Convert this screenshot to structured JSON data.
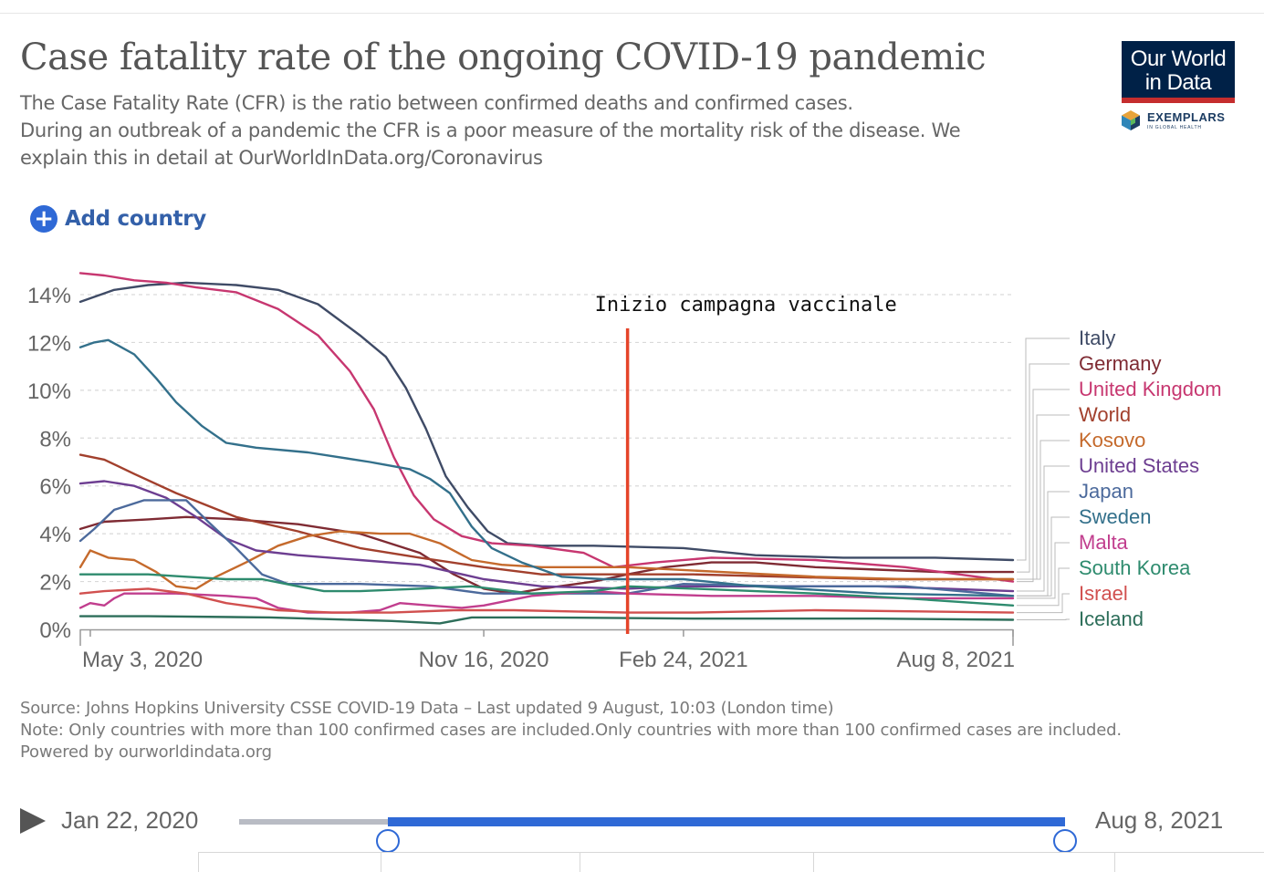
{
  "header": {
    "title": "Case fatality rate of the ongoing COVID-19 pandemic",
    "subtitle_lines": [
      "The Case Fatality Rate (CFR) is the ratio between confirmed deaths and confirmed cases.",
      "During an outbreak of a pandemic the CFR is a poor measure of the mortality risk of the disease. We",
      "explain this in detail at OurWorldInData.org/Coronavirus"
    ]
  },
  "logo": {
    "line1": "Our World",
    "line2": "in Data",
    "exemplars": "EXEMPLARS",
    "exemplars_sub": "IN GLOBAL HEALTH"
  },
  "controls": {
    "add_country": "Add country"
  },
  "chart_data": {
    "type": "line",
    "y_unit": "%",
    "ylim": [
      0,
      14
    ],
    "y_ticks": [
      "0%",
      "2%",
      "4%",
      "6%",
      "8%",
      "10%",
      "12%",
      "14%"
    ],
    "x_range": [
      "2020-04-28",
      "2021-08-08"
    ],
    "x_ticks": [
      {
        "date": "2020-05-03",
        "label": "May 3, 2020"
      },
      {
        "date": "2020-11-16",
        "label": "Nov 16, 2020"
      },
      {
        "date": "2021-02-24",
        "label": "Feb 24, 2021"
      },
      {
        "date": "2021-08-08",
        "label": "Aug 8, 2021"
      }
    ],
    "grid": "horizontal dashed",
    "legend": "right",
    "annotation": {
      "text": "Inizio campagna vaccinale",
      "date": "2021-01-27",
      "color": "#e5442a"
    },
    "series": [
      {
        "name": "Italy",
        "color": "#3f4b66",
        "points": [
          [
            "2020-04-28",
            13.7
          ],
          [
            "2020-05-15",
            14.2
          ],
          [
            "2020-06-01",
            14.4
          ],
          [
            "2020-06-20",
            14.5
          ],
          [
            "2020-07-15",
            14.4
          ],
          [
            "2020-08-05",
            14.2
          ],
          [
            "2020-08-25",
            13.6
          ],
          [
            "2020-09-15",
            12.3
          ],
          [
            "2020-09-28",
            11.4
          ],
          [
            "2020-10-08",
            10.1
          ],
          [
            "2020-10-18",
            8.4
          ],
          [
            "2020-10-28",
            6.4
          ],
          [
            "2020-11-08",
            5.1
          ],
          [
            "2020-11-18",
            4.1
          ],
          [
            "2020-11-28",
            3.6
          ],
          [
            "2020-12-15",
            3.5
          ],
          [
            "2021-01-10",
            3.5
          ],
          [
            "2021-02-24",
            3.4
          ],
          [
            "2021-04-01",
            3.1
          ],
          [
            "2021-05-15",
            3.0
          ],
          [
            "2021-06-30",
            3.0
          ],
          [
            "2021-08-08",
            2.9
          ]
        ]
      },
      {
        "name": "Germany",
        "color": "#7f2b33",
        "points": [
          [
            "2020-04-28",
            4.2
          ],
          [
            "2020-05-10",
            4.5
          ],
          [
            "2020-06-01",
            4.6
          ],
          [
            "2020-06-20",
            4.7
          ],
          [
            "2020-07-15",
            4.6
          ],
          [
            "2020-08-15",
            4.4
          ],
          [
            "2020-09-15",
            4.0
          ],
          [
            "2020-10-15",
            3.2
          ],
          [
            "2020-11-01",
            2.3
          ],
          [
            "2020-11-16",
            1.7
          ],
          [
            "2020-12-01",
            1.5
          ],
          [
            "2020-12-15",
            1.7
          ],
          [
            "2021-01-10",
            2.0
          ],
          [
            "2021-01-27",
            2.3
          ],
          [
            "2021-02-15",
            2.6
          ],
          [
            "2021-03-10",
            2.8
          ],
          [
            "2021-04-01",
            2.8
          ],
          [
            "2021-05-01",
            2.6
          ],
          [
            "2021-06-01",
            2.5
          ],
          [
            "2021-07-01",
            2.4
          ],
          [
            "2021-08-08",
            2.4
          ]
        ]
      },
      {
        "name": "United Kingdom",
        "color": "#c73770",
        "points": [
          [
            "2020-04-28",
            14.9
          ],
          [
            "2020-05-10",
            14.8
          ],
          [
            "2020-05-25",
            14.6
          ],
          [
            "2020-06-10",
            14.5
          ],
          [
            "2020-06-25",
            14.3
          ],
          [
            "2020-07-15",
            14.1
          ],
          [
            "2020-08-05",
            13.4
          ],
          [
            "2020-08-25",
            12.3
          ],
          [
            "2020-09-10",
            10.8
          ],
          [
            "2020-09-22",
            9.2
          ],
          [
            "2020-10-02",
            7.2
          ],
          [
            "2020-10-12",
            5.6
          ],
          [
            "2020-10-22",
            4.6
          ],
          [
            "2020-11-05",
            3.9
          ],
          [
            "2020-11-20",
            3.6
          ],
          [
            "2020-12-10",
            3.5
          ],
          [
            "2021-01-05",
            3.2
          ],
          [
            "2021-01-20",
            2.6
          ],
          [
            "2021-02-10",
            2.8
          ],
          [
            "2021-03-10",
            3.0
          ],
          [
            "2021-05-01",
            2.9
          ],
          [
            "2021-06-15",
            2.6
          ],
          [
            "2021-08-08",
            2.0
          ]
        ]
      },
      {
        "name": "World",
        "color": "#a2402d",
        "points": [
          [
            "2020-04-28",
            7.3
          ],
          [
            "2020-05-10",
            7.1
          ],
          [
            "2020-05-25",
            6.5
          ],
          [
            "2020-06-15",
            5.7
          ],
          [
            "2020-07-15",
            4.7
          ],
          [
            "2020-08-15",
            4.1
          ],
          [
            "2020-09-15",
            3.4
          ],
          [
            "2020-10-15",
            3.0
          ],
          [
            "2020-11-16",
            2.6
          ],
          [
            "2020-12-15",
            2.3
          ],
          [
            "2021-01-27",
            2.3
          ],
          [
            "2021-03-01",
            2.3
          ],
          [
            "2021-04-15",
            2.2
          ],
          [
            "2021-06-01",
            2.1
          ],
          [
            "2021-08-08",
            2.1
          ]
        ]
      },
      {
        "name": "Kosovo",
        "color": "#c56a2c",
        "points": [
          [
            "2020-04-28",
            2.6
          ],
          [
            "2020-05-03",
            3.3
          ],
          [
            "2020-05-12",
            3.0
          ],
          [
            "2020-05-25",
            2.9
          ],
          [
            "2020-06-05",
            2.4
          ],
          [
            "2020-06-15",
            1.8
          ],
          [
            "2020-06-25",
            1.7
          ],
          [
            "2020-07-05",
            2.2
          ],
          [
            "2020-07-20",
            2.8
          ],
          [
            "2020-08-05",
            3.5
          ],
          [
            "2020-08-20",
            3.9
          ],
          [
            "2020-09-05",
            4.1
          ],
          [
            "2020-09-25",
            4.0
          ],
          [
            "2020-10-10",
            4.0
          ],
          [
            "2020-10-25",
            3.6
          ],
          [
            "2020-11-10",
            2.9
          ],
          [
            "2020-11-25",
            2.7
          ],
          [
            "2020-12-15",
            2.6
          ],
          [
            "2021-01-27",
            2.6
          ],
          [
            "2021-03-15",
            2.4
          ],
          [
            "2021-05-01",
            2.2
          ],
          [
            "2021-06-15",
            2.1
          ],
          [
            "2021-08-08",
            2.1
          ]
        ]
      },
      {
        "name": "United States",
        "color": "#6d3e91",
        "points": [
          [
            "2020-04-28",
            6.1
          ],
          [
            "2020-05-10",
            6.2
          ],
          [
            "2020-05-25",
            6.0
          ],
          [
            "2020-06-10",
            5.5
          ],
          [
            "2020-06-25",
            4.7
          ],
          [
            "2020-07-10",
            3.8
          ],
          [
            "2020-07-25",
            3.3
          ],
          [
            "2020-08-15",
            3.1
          ],
          [
            "2020-09-15",
            2.9
          ],
          [
            "2020-10-15",
            2.7
          ],
          [
            "2020-11-16",
            2.1
          ],
          [
            "2020-12-15",
            1.8
          ],
          [
            "2021-01-27",
            1.7
          ],
          [
            "2021-02-24",
            1.8
          ],
          [
            "2021-04-01",
            1.8
          ],
          [
            "2021-06-01",
            1.8
          ],
          [
            "2021-08-08",
            1.6
          ]
        ]
      },
      {
        "name": "Japan",
        "color": "#4c6a9c",
        "points": [
          [
            "2020-04-28",
            3.7
          ],
          [
            "2020-05-05",
            4.2
          ],
          [
            "2020-05-15",
            5.0
          ],
          [
            "2020-05-30",
            5.4
          ],
          [
            "2020-06-20",
            5.4
          ],
          [
            "2020-07-01",
            4.5
          ],
          [
            "2020-07-15",
            3.4
          ],
          [
            "2020-07-28",
            2.3
          ],
          [
            "2020-08-10",
            1.9
          ],
          [
            "2020-09-15",
            1.9
          ],
          [
            "2020-10-20",
            1.8
          ],
          [
            "2020-11-16",
            1.5
          ],
          [
            "2020-12-10",
            1.5
          ],
          [
            "2021-01-27",
            1.5
          ],
          [
            "2021-02-24",
            1.9
          ],
          [
            "2021-04-15",
            1.8
          ],
          [
            "2021-06-15",
            1.8
          ],
          [
            "2021-08-08",
            1.4
          ]
        ]
      },
      {
        "name": "Sweden",
        "color": "#33708b",
        "points": [
          [
            "2020-04-28",
            11.8
          ],
          [
            "2020-05-05",
            12.0
          ],
          [
            "2020-05-12",
            12.1
          ],
          [
            "2020-05-25",
            11.5
          ],
          [
            "2020-06-05",
            10.5
          ],
          [
            "2020-06-15",
            9.5
          ],
          [
            "2020-06-28",
            8.5
          ],
          [
            "2020-07-10",
            7.8
          ],
          [
            "2020-07-25",
            7.6
          ],
          [
            "2020-08-20",
            7.4
          ],
          [
            "2020-09-20",
            7.0
          ],
          [
            "2020-10-10",
            6.7
          ],
          [
            "2020-10-20",
            6.3
          ],
          [
            "2020-10-30",
            5.7
          ],
          [
            "2020-11-10",
            4.3
          ],
          [
            "2020-11-20",
            3.4
          ],
          [
            "2020-12-05",
            2.8
          ],
          [
            "2020-12-25",
            2.2
          ],
          [
            "2021-01-15",
            2.1
          ],
          [
            "2021-01-27",
            2.1
          ],
          [
            "2021-02-24",
            2.1
          ],
          [
            "2021-04-01",
            1.8
          ],
          [
            "2021-06-01",
            1.5
          ],
          [
            "2021-08-08",
            1.4
          ]
        ]
      },
      {
        "name": "Malta",
        "color": "#c13e8e",
        "points": [
          [
            "2020-04-28",
            0.9
          ],
          [
            "2020-05-03",
            1.1
          ],
          [
            "2020-05-10",
            1.0
          ],
          [
            "2020-05-15",
            1.3
          ],
          [
            "2020-05-20",
            1.5
          ],
          [
            "2020-06-15",
            1.5
          ],
          [
            "2020-07-10",
            1.4
          ],
          [
            "2020-07-25",
            1.3
          ],
          [
            "2020-08-05",
            0.9
          ],
          [
            "2020-08-20",
            0.7
          ],
          [
            "2020-09-10",
            0.7
          ],
          [
            "2020-09-25",
            0.8
          ],
          [
            "2020-10-05",
            1.1
          ],
          [
            "2020-10-20",
            1.0
          ],
          [
            "2020-11-05",
            0.9
          ],
          [
            "2020-11-16",
            1.0
          ],
          [
            "2020-12-10",
            1.4
          ],
          [
            "2021-01-10",
            1.6
          ],
          [
            "2021-01-27",
            1.5
          ],
          [
            "2021-03-10",
            1.4
          ],
          [
            "2021-05-01",
            1.4
          ],
          [
            "2021-06-15",
            1.3
          ],
          [
            "2021-08-08",
            1.3
          ]
        ]
      },
      {
        "name": "South Korea",
        "color": "#2e8b6e",
        "points": [
          [
            "2020-04-28",
            2.3
          ],
          [
            "2020-06-01",
            2.3
          ],
          [
            "2020-06-20",
            2.2
          ],
          [
            "2020-07-10",
            2.1
          ],
          [
            "2020-07-28",
            2.1
          ],
          [
            "2020-08-15",
            1.8
          ],
          [
            "2020-08-28",
            1.6
          ],
          [
            "2020-09-15",
            1.6
          ],
          [
            "2020-10-15",
            1.7
          ],
          [
            "2020-11-10",
            1.8
          ],
          [
            "2020-12-10",
            1.5
          ],
          [
            "2021-01-10",
            1.6
          ],
          [
            "2021-01-27",
            1.8
          ],
          [
            "2021-03-01",
            1.7
          ],
          [
            "2021-05-01",
            1.5
          ],
          [
            "2021-06-15",
            1.3
          ],
          [
            "2021-08-08",
            1.0
          ]
        ]
      },
      {
        "name": "Israel",
        "color": "#d1504f",
        "points": [
          [
            "2020-04-28",
            1.5
          ],
          [
            "2020-05-10",
            1.6
          ],
          [
            "2020-06-01",
            1.7
          ],
          [
            "2020-06-20",
            1.5
          ],
          [
            "2020-07-10",
            1.1
          ],
          [
            "2020-08-05",
            0.8
          ],
          [
            "2020-09-01",
            0.7
          ],
          [
            "2020-10-01",
            0.7
          ],
          [
            "2020-11-01",
            0.8
          ],
          [
            "2020-12-01",
            0.8
          ],
          [
            "2021-01-27",
            0.7
          ],
          [
            "2021-03-01",
            0.7
          ],
          [
            "2021-05-01",
            0.8
          ],
          [
            "2021-08-08",
            0.7
          ]
        ]
      },
      {
        "name": "Iceland",
        "color": "#2d6e5a",
        "points": [
          [
            "2020-04-28",
            0.55
          ],
          [
            "2020-06-01",
            0.55
          ],
          [
            "2020-08-01",
            0.5
          ],
          [
            "2020-10-01",
            0.35
          ],
          [
            "2020-10-25",
            0.25
          ],
          [
            "2020-11-10",
            0.5
          ],
          [
            "2020-12-15",
            0.5
          ],
          [
            "2021-03-01",
            0.45
          ],
          [
            "2021-06-01",
            0.45
          ],
          [
            "2021-08-08",
            0.4
          ]
        ]
      }
    ]
  },
  "footer": {
    "source": "Source: Johns Hopkins University CSSE COVID-19 Data – Last updated 9 August, 10:03 (London time)",
    "note": "Note: Only countries with more than 100 confirmed cases are included.Only countries with more than 100 confirmed cases are included.",
    "powered": "Powered by ourworldindata.org"
  },
  "timeline": {
    "start_label": "Jan 22, 2020",
    "end_label": "Aug 8, 2021",
    "range_start_fraction": 0.18,
    "range_end_fraction": 1.0
  }
}
